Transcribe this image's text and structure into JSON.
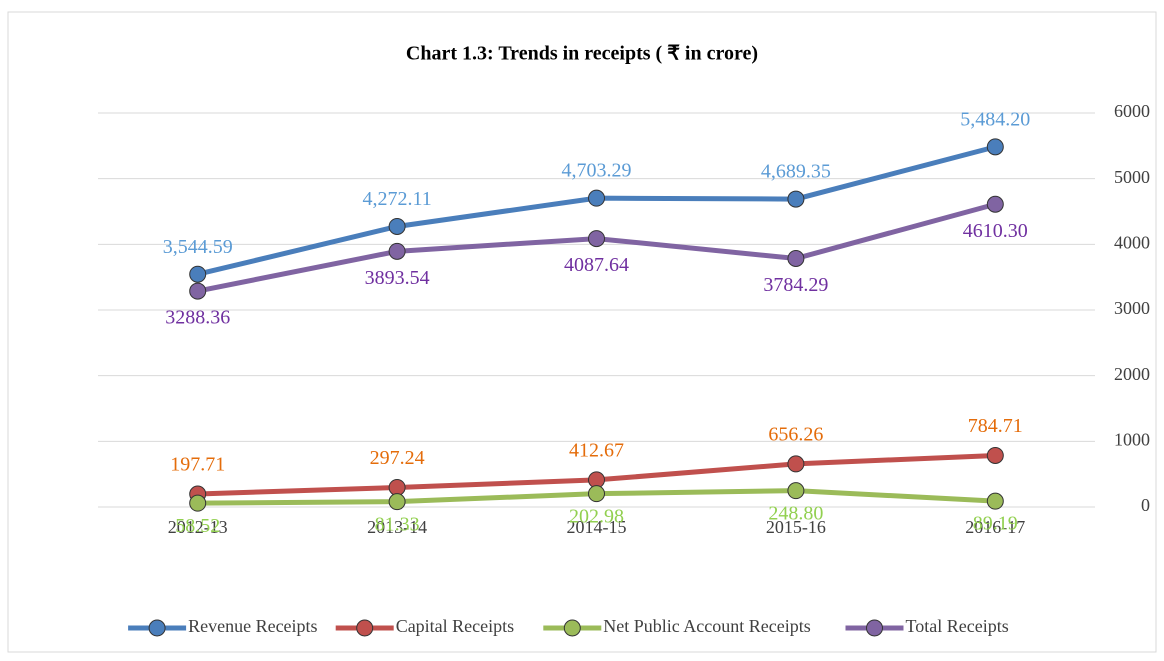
{
  "chart_data": {
    "type": "line",
    "title": "Chart 1.3: Trends in receipts ( ₹ in crore)",
    "categories": [
      "2012-13",
      "2013-14",
      "2014-15",
      "2015-16",
      "2016-17"
    ],
    "series": [
      {
        "name": "Revenue Receipts",
        "color": "#4a7ebb",
        "label_color": "#5b9bd5",
        "values": [
          3544.59,
          4272.11,
          4703.29,
          4689.35,
          5484.2
        ],
        "value_labels": [
          "3,544.59",
          "4,272.11",
          "4,703.29",
          "4,689.35",
          "5,484.20"
        ]
      },
      {
        "name": "Capital Receipts",
        "color": "#c0504d",
        "label_color": "#e46c0a",
        "values": [
          197.71,
          297.24,
          412.67,
          656.26,
          784.71
        ],
        "value_labels": [
          "197.71",
          "297.24",
          "412.67",
          "656.26",
          "784.71"
        ]
      },
      {
        "name": "Net Public Account Receipts",
        "color": "#9bbb59",
        "label_color": "#92d050",
        "values": [
          58.52,
          81.33,
          202.98,
          248.8,
          89.19
        ],
        "value_labels": [
          "58.52",
          "81.33",
          "202.98",
          "248.80",
          "89.19"
        ]
      },
      {
        "name": "Total Receipts",
        "color": "#8064a2",
        "label_color": "#7030a0",
        "values": [
          3288.36,
          3893.54,
          4087.64,
          3784.29,
          4610.3
        ],
        "value_labels": [
          "3288.36",
          "3893.54",
          "4087.64",
          "3784.29",
          "4610.30"
        ]
      }
    ],
    "ylim": [
      0,
      6000
    ],
    "yticks": [
      0,
      1000,
      2000,
      3000,
      4000,
      5000,
      6000
    ],
    "y_axis_side": "right",
    "grid": true,
    "legend": "bottom"
  }
}
